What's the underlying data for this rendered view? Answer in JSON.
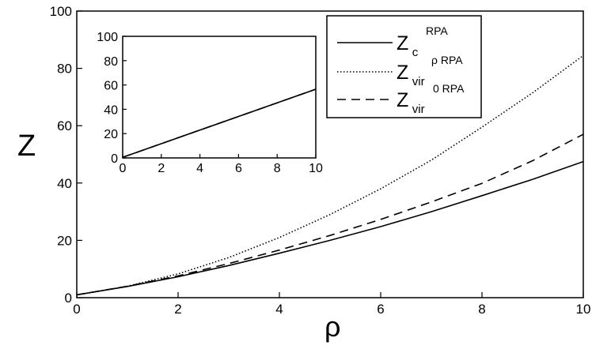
{
  "chart_data": [
    {
      "type": "line",
      "title": "",
      "xlabel": "ρ",
      "ylabel": "Z",
      "xlim": [
        0,
        10
      ],
      "ylim": [
        0,
        100
      ],
      "xticks": [
        "0",
        "2",
        "4",
        "6",
        "8",
        "10"
      ],
      "yticks": [
        "0",
        "20",
        "40",
        "60",
        "80",
        "100"
      ],
      "grid": false,
      "legend_position": "top-right",
      "series": [
        {
          "name": "Z_c^RPA",
          "label": {
            "main": "Z",
            "sub": "c",
            "sup": "RPA"
          },
          "style": "solid",
          "x": [
            0,
            1,
            2,
            3,
            4,
            5,
            6,
            7,
            8,
            9,
            10
          ],
          "y": [
            1,
            3.9,
            7.3,
            11.2,
            15.5,
            20.0,
            24.8,
            30.0,
            35.6,
            41.3,
            47.5
          ]
        },
        {
          "name": "Z_vir^ρ RPA",
          "label": {
            "main": "Z",
            "sub": "vir",
            "sup": "ρ RPA"
          },
          "style": "dotted",
          "x": [
            0,
            1,
            2,
            3,
            4,
            5,
            6,
            7,
            8,
            9,
            10
          ],
          "y": [
            1,
            4.0,
            8.3,
            14.0,
            21.0,
            29.0,
            38.0,
            48.0,
            59.5,
            71.5,
            84.5
          ]
        },
        {
          "name": "Z_vir^0 RPA",
          "label": {
            "main": "Z",
            "sub": "vir",
            "sup": "0 RPA"
          },
          "style": "dashed",
          "x": [
            0,
            1,
            2,
            3,
            4,
            5,
            6,
            7,
            8,
            9,
            10
          ],
          "y": [
            1,
            4.0,
            7.6,
            11.9,
            16.6,
            21.7,
            27.3,
            33.4,
            39.9,
            47.8,
            57.0
          ]
        }
      ]
    },
    {
      "type": "line",
      "title": "",
      "xlim": [
        0,
        10
      ],
      "ylim": [
        0,
        100
      ],
      "xticks": [
        "0",
        "2",
        "4",
        "6",
        "8",
        "10"
      ],
      "yticks": [
        "0",
        "20",
        "40",
        "60",
        "80",
        "100"
      ],
      "grid": false,
      "series": [
        {
          "style": "solid",
          "x": [
            0,
            10
          ],
          "y": [
            0.5,
            56.5
          ]
        },
        {
          "style": "dashed",
          "x": [
            0,
            10
          ],
          "y": [
            0.5,
            56.5
          ]
        }
      ]
    }
  ]
}
